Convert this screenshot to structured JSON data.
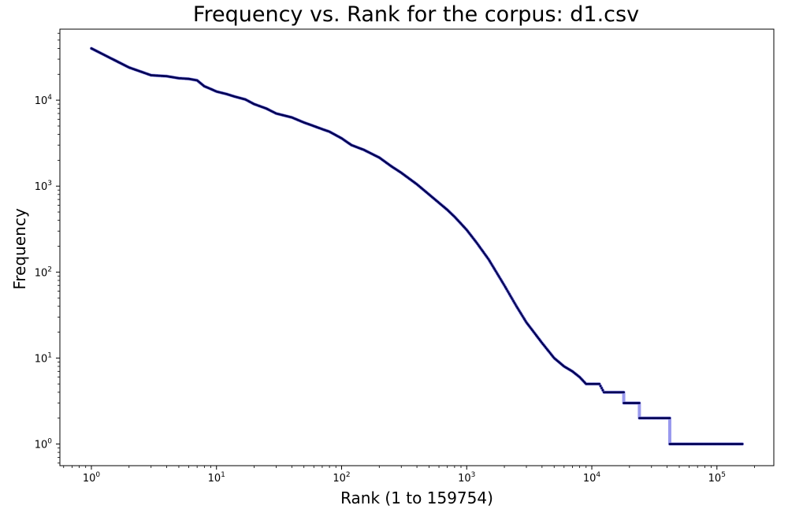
{
  "chart_data": {
    "type": "line",
    "title": "Frequency vs. Rank for the corpus: d1.csv",
    "xlabel": "Rank (1 to 159754)",
    "ylabel": "Frequency",
    "x_scale": "log",
    "y_scale": "log",
    "xlim": [
      0.56,
      285000
    ],
    "ylim": [
      0.56,
      67000
    ],
    "grid": false,
    "x_ticks": [
      {
        "base": "10",
        "exp": "0",
        "value": 1
      },
      {
        "base": "10",
        "exp": "1",
        "value": 10
      },
      {
        "base": "10",
        "exp": "2",
        "value": 100
      },
      {
        "base": "10",
        "exp": "3",
        "value": 1000
      },
      {
        "base": "10",
        "exp": "4",
        "value": 10000
      },
      {
        "base": "10",
        "exp": "5",
        "value": 100000
      }
    ],
    "y_ticks": [
      {
        "base": "10",
        "exp": "0",
        "value": 1
      },
      {
        "base": "10",
        "exp": "1",
        "value": 10
      },
      {
        "base": "10",
        "exp": "2",
        "value": 100
      },
      {
        "base": "10",
        "exp": "3",
        "value": 1000
      },
      {
        "base": "10",
        "exp": "4",
        "value": 10000
      }
    ],
    "line_color": "#9999ee",
    "marker_color": "#000055",
    "series": [
      {
        "x": [
          1,
          2,
          3,
          4,
          5,
          6,
          7,
          8,
          9,
          10,
          12,
          14,
          17,
          20,
          25,
          30,
          40,
          50,
          60,
          70,
          80,
          100,
          120,
          150,
          200,
          250,
          300,
          400,
          500,
          600,
          700,
          800,
          1000,
          1200,
          1500,
          2000,
          2500,
          3000,
          4000,
          5000,
          6000,
          7000,
          8000,
          9000,
          10000,
          11500,
          12500,
          14300,
          18000,
          18001,
          24000,
          24001,
          42000,
          42001,
          159754
        ],
        "y": [
          40000,
          24000,
          19500,
          19000,
          18000,
          17700,
          17000,
          14500,
          13500,
          12600,
          11800,
          11000,
          10200,
          9000,
          8000,
          7000,
          6300,
          5500,
          5000,
          4600,
          4300,
          3600,
          3000,
          2650,
          2150,
          1700,
          1430,
          1050,
          800,
          640,
          530,
          440,
          310,
          220,
          140,
          70,
          40,
          26,
          15,
          10,
          8,
          7,
          6,
          5,
          5,
          5,
          4,
          4,
          4,
          3,
          3,
          2,
          2,
          1,
          1
        ]
      }
    ]
  }
}
